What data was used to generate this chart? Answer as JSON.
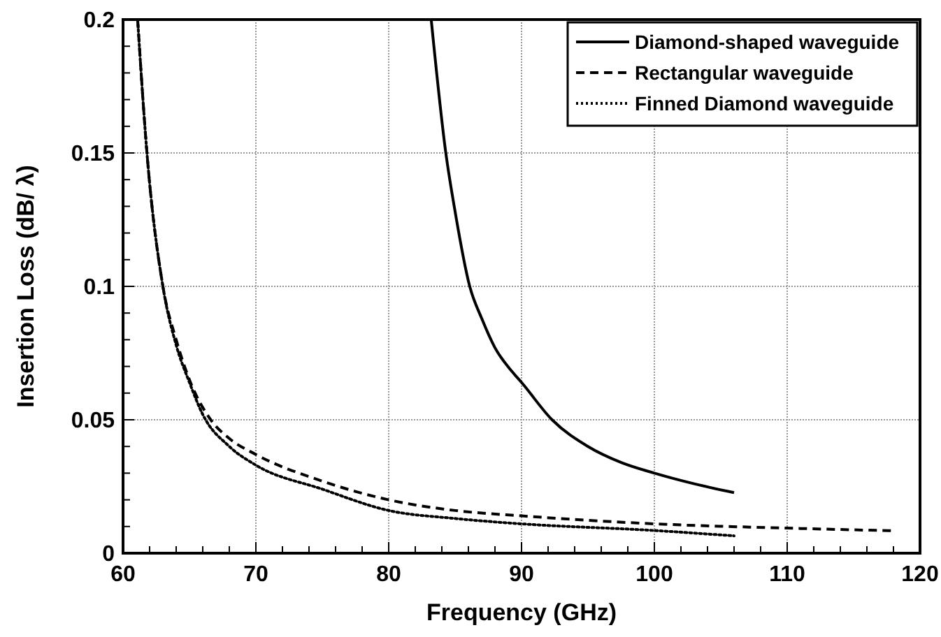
{
  "chart_data": {
    "type": "line",
    "xlabel": "Frequency (GHz)",
    "ylabel": "Insertion Loss (dB/ λ)",
    "xlim": [
      60,
      120
    ],
    "ylim": [
      0,
      0.2
    ],
    "xticks": [
      60,
      {
        "value": 62,
        "label": null
      },
      {
        "value": 64,
        "label": null
      },
      {
        "value": 66,
        "label": null
      },
      {
        "value": 68,
        "label": null
      },
      70,
      {
        "value": 72,
        "label": null
      },
      {
        "value": 74,
        "label": null
      },
      {
        "value": 76,
        "label": null
      },
      {
        "value": 78,
        "label": null
      },
      80,
      {
        "value": 82,
        "label": null
      },
      {
        "value": 84,
        "label": null
      },
      {
        "value": 86,
        "label": null
      },
      {
        "value": 88,
        "label": null
      },
      90,
      {
        "value": 92,
        "label": null
      },
      {
        "value": 94,
        "label": null
      },
      {
        "value": 96,
        "label": null
      },
      {
        "value": 98,
        "label": null
      },
      100,
      {
        "value": 102,
        "label": null
      },
      {
        "value": 104,
        "label": null
      },
      {
        "value": 106,
        "label": null
      },
      {
        "value": 108,
        "label": null
      },
      110,
      {
        "value": 112,
        "label": null
      },
      {
        "value": 114,
        "label": null
      },
      {
        "value": 116,
        "label": null
      },
      {
        "value": 118,
        "label": null
      },
      120
    ],
    "yticks": [
      0,
      {
        "value": 0.01,
        "label": null
      },
      {
        "value": 0.02,
        "label": null
      },
      {
        "value": 0.03,
        "label": null
      },
      {
        "value": 0.04,
        "label": null
      },
      0.05,
      {
        "value": 0.06,
        "label": null
      },
      {
        "value": 0.07,
        "label": null
      },
      {
        "value": 0.08,
        "label": null
      },
      {
        "value": 0.09,
        "label": null
      },
      0.1,
      {
        "value": 0.11,
        "label": null
      },
      {
        "value": 0.12,
        "label": null
      },
      {
        "value": 0.13,
        "label": null
      },
      {
        "value": 0.14,
        "label": null
      },
      0.15,
      {
        "value": 0.16,
        "label": null
      },
      {
        "value": 0.17,
        "label": null
      },
      {
        "value": 0.18,
        "label": null
      },
      {
        "value": 0.19,
        "label": null
      },
      0.2
    ],
    "grid": true,
    "legend": "top right",
    "series": [
      {
        "name": "Diamond-shaped waveguide",
        "color": "#000000",
        "line_style": "solid",
        "x": [
          83.2,
          84.3,
          85,
          86.1,
          87,
          88,
          89.3,
          90,
          92.3,
          95,
          97.5,
          100,
          103,
          106
        ],
        "values": [
          0.2,
          0.15,
          0.128,
          0.1,
          0.088,
          0.077,
          0.068,
          0.064,
          0.05,
          0.04,
          0.034,
          0.03,
          0.026,
          0.0227
        ]
      },
      {
        "name": "Rectangular waveguide",
        "color": "#000000",
        "line_style": "dashed",
        "x": [
          61.1,
          61.8,
          63,
          64,
          65,
          66.6,
          68,
          70,
          75,
          80,
          85,
          90,
          100,
          110,
          118
        ],
        "values": [
          0.2,
          0.15,
          0.1,
          0.08,
          0.065,
          0.05,
          0.043,
          0.037,
          0.027,
          0.02,
          0.016,
          0.014,
          0.011,
          0.0094,
          0.0084
        ]
      },
      {
        "name": "Finned Diamond waveguide",
        "color": "#000000",
        "line_style": "dotted",
        "x": [
          61.1,
          61.8,
          63,
          64,
          65,
          66,
          68,
          70,
          75,
          80,
          85,
          90,
          100,
          106
        ],
        "values": [
          0.2,
          0.15,
          0.1,
          0.078,
          0.064,
          0.052,
          0.04,
          0.033,
          0.024,
          0.016,
          0.013,
          0.011,
          0.0085,
          0.0065
        ]
      }
    ]
  }
}
